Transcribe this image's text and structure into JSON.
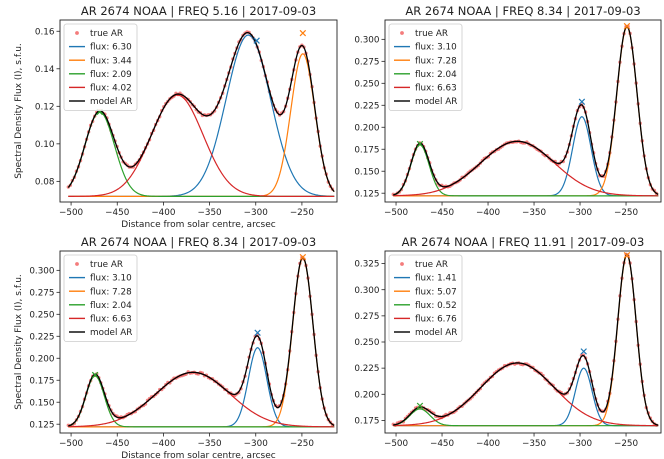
{
  "chart_data": [
    {
      "type": "line",
      "title": "AR 2674 NOAA | FREQ 5.16 | 2017-09-03",
      "xlabel": "Distance from solar centre, arcsec",
      "ylabel": "Spectral Density Flux (I), s.f.u.",
      "xlim": [
        -512,
        -212
      ],
      "ylim": [
        0.069,
        0.166
      ],
      "xticks": [
        -500,
        -450,
        -400,
        -350,
        -300,
        -250
      ],
      "yticks": [
        0.08,
        0.1,
        0.12,
        0.14,
        0.16
      ],
      "ytick_decimals": 2,
      "x_range": [
        -503,
        -215
      ],
      "baseline": 0.072,
      "legend_position": "upper-left",
      "components": [
        {
          "label": "flux: 6.30",
          "color": "#1f77b4",
          "center": -308,
          "amp": 0.086,
          "sigma": 24
        },
        {
          "label": "flux: 3.44",
          "color": "#ff7f0e",
          "center": -249,
          "amp": 0.076,
          "sigma": 13
        },
        {
          "label": "flux: 2.09",
          "color": "#2ca02c",
          "center": -469,
          "amp": 0.045,
          "sigma": 16
        },
        {
          "label": "flux: 4.02",
          "color": "#d62728",
          "center": -385,
          "amp": 0.054,
          "sigma": 28
        }
      ],
      "peak_markers": [
        {
          "x": -469,
          "y": 0.117,
          "color": "#2ca02c"
        },
        {
          "x": -299,
          "y": 0.155,
          "color": "#1f77b4"
        },
        {
          "x": -249,
          "y": 0.159,
          "color": "#ff7f0e"
        }
      ],
      "true_label": "true AR",
      "true_color": "#f05050",
      "model_label": "model AR",
      "model_color": "#000000"
    },
    {
      "type": "line",
      "title": "AR 2674 NOAA | FREQ 8.34 | 2017-09-03",
      "xlabel": "",
      "ylabel": "",
      "xlim": [
        -512,
        -212
      ],
      "ylim": [
        0.115,
        0.322
      ],
      "xticks": [
        -500,
        -450,
        -400,
        -350,
        -300,
        -250
      ],
      "yticks": [
        0.125,
        0.15,
        0.175,
        0.2,
        0.225,
        0.25,
        0.275,
        0.3
      ],
      "ytick_decimals": 3,
      "x_range": [
        -503,
        -215
      ],
      "baseline": 0.122,
      "legend_position": "upper-left",
      "components": [
        {
          "label": "flux: 3.10",
          "color": "#1f77b4",
          "center": -298,
          "amp": 0.09,
          "sigma": 10
        },
        {
          "label": "flux: 7.28",
          "color": "#ff7f0e",
          "center": -249,
          "amp": 0.192,
          "sigma": 11
        },
        {
          "label": "flux: 2.04",
          "color": "#2ca02c",
          "center": -474,
          "amp": 0.058,
          "sigma": 10
        },
        {
          "label": "flux: 6.63",
          "color": "#d62728",
          "center": -368,
          "amp": 0.062,
          "sigma": 40
        }
      ],
      "peak_markers": [
        {
          "x": -474,
          "y": 0.181,
          "color": "#2ca02c"
        },
        {
          "x": -298,
          "y": 0.229,
          "color": "#1f77b4"
        },
        {
          "x": -249,
          "y": 0.315,
          "color": "#ff7f0e"
        }
      ],
      "true_label": "true AR",
      "true_color": "#f05050",
      "model_label": "model AR",
      "model_color": "#000000"
    },
    {
      "type": "line",
      "title": "AR 2674 NOAA | FREQ 8.34 | 2017-09-03",
      "xlabel": "Distance from solar centre, arcsec",
      "ylabel": "Spectral Density Flux (I), s.f.u.",
      "xlim": [
        -512,
        -212
      ],
      "ylim": [
        0.115,
        0.322
      ],
      "xticks": [
        -500,
        -450,
        -400,
        -350,
        -300,
        -250
      ],
      "yticks": [
        0.125,
        0.15,
        0.175,
        0.2,
        0.225,
        0.25,
        0.275,
        0.3
      ],
      "ytick_decimals": 3,
      "x_range": [
        -503,
        -215
      ],
      "baseline": 0.122,
      "legend_position": "upper-left",
      "components": [
        {
          "label": "flux: 3.10",
          "color": "#1f77b4",
          "center": -298,
          "amp": 0.09,
          "sigma": 10
        },
        {
          "label": "flux: 7.28",
          "color": "#ff7f0e",
          "center": -249,
          "amp": 0.192,
          "sigma": 11
        },
        {
          "label": "flux: 2.04",
          "color": "#2ca02c",
          "center": -474,
          "amp": 0.058,
          "sigma": 10
        },
        {
          "label": "flux: 6.63",
          "color": "#d62728",
          "center": -368,
          "amp": 0.062,
          "sigma": 40
        }
      ],
      "peak_markers": [
        {
          "x": -474,
          "y": 0.181,
          "color": "#2ca02c"
        },
        {
          "x": -298,
          "y": 0.229,
          "color": "#1f77b4"
        },
        {
          "x": -249,
          "y": 0.315,
          "color": "#ff7f0e"
        }
      ],
      "true_label": "true AR",
      "true_color": "#f05050",
      "model_label": "model AR",
      "model_color": "#000000"
    },
    {
      "type": "line",
      "title": "AR 2674 NOAA | FREQ 11.91 | 2017-09-03",
      "xlabel": "",
      "ylabel": "",
      "xlim": [
        -512,
        -212
      ],
      "ylim": [
        0.163,
        0.337
      ],
      "xticks": [
        -500,
        -450,
        -400,
        -350,
        -300,
        -250
      ],
      "yticks": [
        0.175,
        0.2,
        0.225,
        0.25,
        0.275,
        0.3,
        0.325
      ],
      "ytick_decimals": 3,
      "x_range": [
        -503,
        -215
      ],
      "baseline": 0.17,
      "legend_position": "upper-left",
      "components": [
        {
          "label": "flux: 1.41",
          "color": "#1f77b4",
          "center": -296,
          "amp": 0.055,
          "sigma": 9
        },
        {
          "label": "flux: 5.07",
          "color": "#ff7f0e",
          "center": -249,
          "amp": 0.163,
          "sigma": 10
        },
        {
          "label": "flux: 0.52",
          "color": "#2ca02c",
          "center": -474,
          "amp": 0.016,
          "sigma": 11
        },
        {
          "label": "flux: 6.76",
          "color": "#d62728",
          "center": -368,
          "amp": 0.06,
          "sigma": 40
        }
      ],
      "peak_markers": [
        {
          "x": -474,
          "y": 0.189,
          "color": "#2ca02c"
        },
        {
          "x": -296,
          "y": 0.241,
          "color": "#1f77b4"
        },
        {
          "x": -249,
          "y": 0.333,
          "color": "#ff7f0e"
        }
      ],
      "true_label": "true AR",
      "true_color": "#f05050",
      "model_label": "model AR",
      "model_color": "#000000"
    }
  ]
}
